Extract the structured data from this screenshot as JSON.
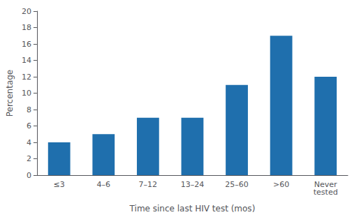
{
  "chart_data": {
    "type": "bar",
    "categories": [
      "≤3",
      "4–6",
      "7–12",
      "13–24",
      "25–60",
      ">60",
      "Never\ntested"
    ],
    "values": [
      4,
      5,
      7,
      7,
      11,
      17,
      12
    ],
    "color": "#1f6fad",
    "xlabel": "Time since last HIV test (mos)",
    "ylabel": "Percentage",
    "ylim": [
      0,
      20
    ],
    "yticks": [
      0,
      2,
      4,
      6,
      8,
      10,
      12,
      14,
      16,
      18,
      20
    ],
    "grid": false
  }
}
